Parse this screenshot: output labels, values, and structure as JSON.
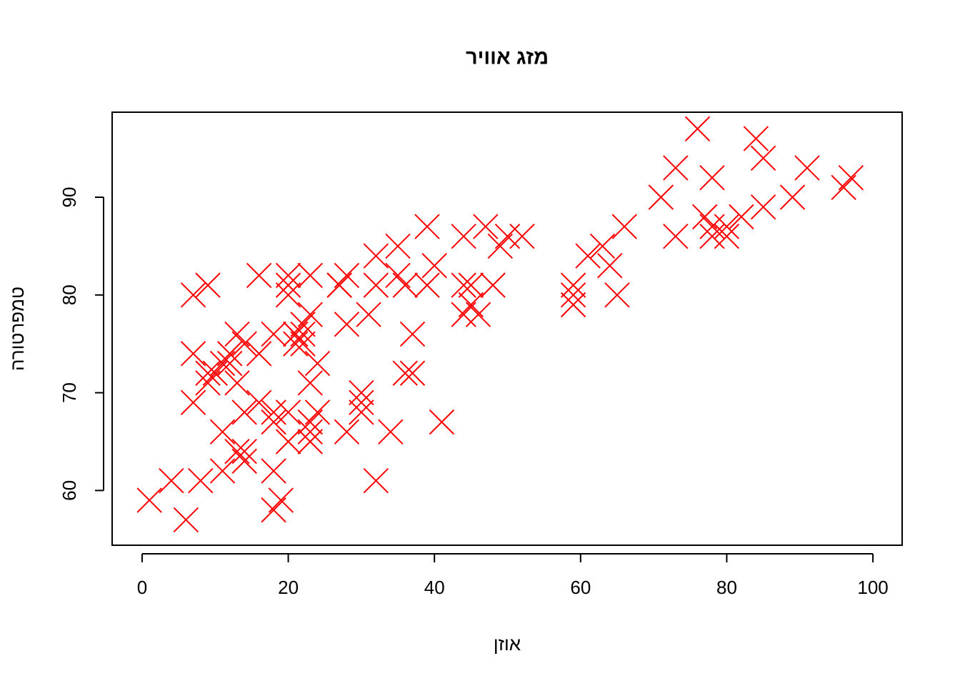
{
  "chart_data": {
    "type": "scatter",
    "title": "מזג אוויר",
    "x_label": "אוזן",
    "y_label": "טמפרטורה",
    "color": "#ff0000",
    "marker": "x",
    "x": [
      76,
      84,
      85,
      73,
      91,
      78,
      97,
      96,
      71,
      89,
      85,
      77,
      82,
      78,
      80,
      80,
      78,
      73,
      66,
      63,
      61,
      64,
      65,
      59,
      59,
      59,
      39,
      47,
      44,
      52,
      49,
      50,
      35,
      32,
      40,
      44,
      45,
      48,
      39,
      36,
      35,
      32,
      28,
      27,
      27,
      44,
      45,
      46,
      31,
      28,
      37,
      36,
      37,
      41,
      34,
      32,
      30,
      30,
      30,
      28,
      16,
      20,
      23,
      20,
      20,
      23,
      22,
      21,
      22,
      21,
      22,
      21,
      18,
      13,
      14,
      16,
      12,
      12,
      11,
      10,
      9,
      9,
      13,
      23,
      24,
      16,
      14,
      18,
      20,
      24,
      23,
      18,
      23,
      11,
      20,
      23,
      13,
      14,
      14,
      18,
      11,
      19,
      18,
      7,
      8,
      7,
      1,
      4,
      6,
      7,
      9
    ],
    "y": [
      97,
      96,
      94,
      93,
      93,
      92,
      92,
      91,
      90,
      90,
      89,
      88,
      88,
      87,
      87,
      86,
      86,
      86,
      87,
      85,
      84,
      83,
      80,
      80,
      79,
      81,
      87,
      87,
      86,
      86,
      85,
      86,
      85,
      84,
      83,
      81,
      81,
      81,
      81,
      81,
      82,
      81,
      82,
      81,
      81,
      78,
      79,
      78,
      78,
      77,
      76,
      72,
      72,
      67,
      66,
      61,
      70,
      69,
      68,
      66,
      82,
      82,
      82,
      81,
      80,
      78,
      77,
      76,
      76,
      76,
      75,
      75,
      76,
      76,
      75,
      74,
      74,
      73,
      73,
      72,
      72,
      71,
      71,
      71,
      73,
      69,
      68,
      68,
      68,
      68,
      67,
      67,
      66,
      66,
      65,
      65,
      64,
      64,
      63,
      62,
      62,
      59,
      58,
      74,
      61,
      69,
      59,
      61,
      57,
      80,
      81
    ],
    "xlim": [
      -4.1,
      104
    ],
    "ylim": [
      54.4,
      98.7
    ],
    "xticks": [
      0,
      20,
      40,
      60,
      80,
      100
    ],
    "yticks": [
      60,
      70,
      80,
      90
    ]
  }
}
